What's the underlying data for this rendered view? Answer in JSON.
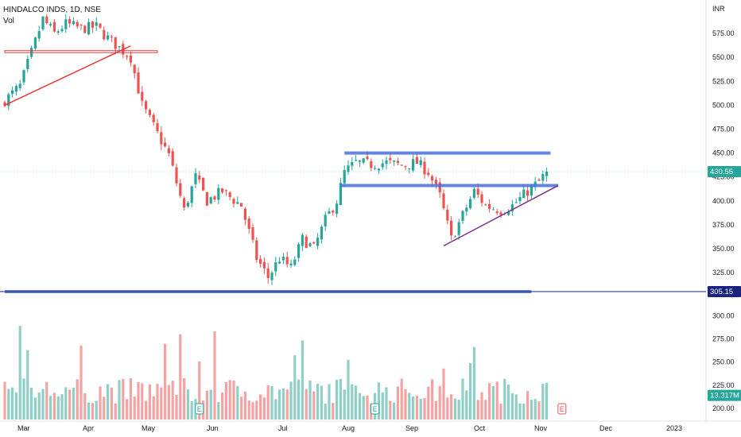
{
  "legend": {
    "symbol": "HINDALCO INDS, 1D, NSE",
    "volume_label": "Vol"
  },
  "chart_data": {
    "type": "candlestick",
    "currency": "INR",
    "price_ylim": [
      296,
      600
    ],
    "price_ticks": [
      325,
      350,
      375,
      400,
      425,
      450,
      475,
      500,
      525,
      550,
      575
    ],
    "volume_ticks": [
      200,
      225,
      250,
      275,
      300
    ],
    "volume_ylim": [
      188,
      302
    ],
    "x_labels": [
      "Mar",
      "Apr",
      "May",
      "Jun",
      "Jul",
      "Aug",
      "Sep",
      "Oct",
      "Nov",
      "Dec",
      "2023"
    ],
    "last_price": "430.55",
    "last_volume": "13.317M",
    "support_level": "305.15",
    "colors": {
      "up": "#26a69a",
      "down": "#ef5350",
      "vol_up": "#8ed0c8",
      "vol_down": "#f4a3a2",
      "blue": "#4a6fdc",
      "purple": "#7b2d8e",
      "red": "#e53935",
      "navy": "#1a237e",
      "axis": "#131722"
    },
    "earnings_markers": [
      "E",
      "E",
      "E"
    ],
    "drawings": [
      {
        "kind": "horizontal",
        "from_index": 0,
        "to_index": 138,
        "price": 305.15,
        "color": "blue"
      },
      {
        "kind": "horizontal",
        "from_index": 89,
        "to_index": 143,
        "price": 450,
        "color": "blue"
      },
      {
        "kind": "horizontal",
        "from_index": 88,
        "to_index": 145,
        "price": 416,
        "color": "blue"
      },
      {
        "kind": "trend",
        "from": [
          115,
          353
        ],
        "to": [
          145,
          416
        ],
        "color": "purple"
      },
      {
        "kind": "trend",
        "from": [
          0,
          500
        ],
        "to": [
          33,
          562
        ],
        "color": "red"
      },
      {
        "kind": "band",
        "from_index": 0,
        "to_index": 40,
        "top": 557,
        "bottom": 555,
        "color": "red"
      }
    ],
    "keyframes": [
      [
        0,
        505
      ],
      [
        4,
        520
      ],
      [
        7,
        555
      ],
      [
        10,
        590
      ],
      [
        13,
        575
      ],
      [
        16,
        585
      ],
      [
        20,
        580
      ],
      [
        24,
        582
      ],
      [
        27,
        570
      ],
      [
        30,
        560
      ],
      [
        33,
        550
      ],
      [
        36,
        500
      ],
      [
        40,
        470
      ],
      [
        43,
        448
      ],
      [
        47,
        390
      ],
      [
        50,
        425
      ],
      [
        53,
        400
      ],
      [
        57,
        410
      ],
      [
        62,
        395
      ],
      [
        66,
        340
      ],
      [
        69,
        320
      ],
      [
        72,
        340
      ],
      [
        75,
        330
      ],
      [
        78,
        360
      ],
      [
        81,
        350
      ],
      [
        84,
        380
      ],
      [
        87,
        400
      ],
      [
        89,
        430
      ],
      [
        92,
        440
      ],
      [
        96,
        438
      ],
      [
        100,
        440
      ],
      [
        104,
        437
      ],
      [
        108,
        440
      ],
      [
        111,
        430
      ],
      [
        114,
        405
      ],
      [
        117,
        360
      ],
      [
        120,
        385
      ],
      [
        123,
        410
      ],
      [
        126,
        395
      ],
      [
        130,
        390
      ],
      [
        133,
        395
      ],
      [
        137,
        410
      ],
      [
        140,
        420
      ],
      [
        142,
        430.55
      ]
    ]
  }
}
